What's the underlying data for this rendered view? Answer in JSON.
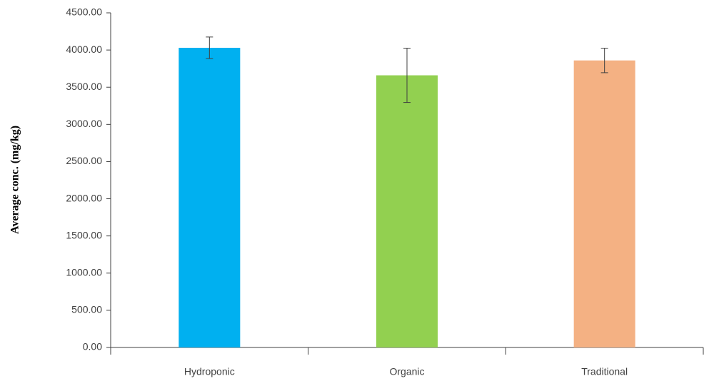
{
  "chart_data": {
    "type": "bar",
    "y_label": "Average conc. (mg/kg)",
    "categories": [
      "Hydroponic",
      "Organic",
      "Traditional"
    ],
    "values": [
      4030,
      3660,
      3860
    ],
    "errors": [
      145,
      365,
      165
    ],
    "colors": [
      "#00b0f0",
      "#92d050",
      "#f4b183"
    ],
    "ylim": [
      0,
      4500
    ],
    "yticks": [
      {
        "value": 0,
        "label": "0.00"
      },
      {
        "value": 500,
        "label": "500.00"
      },
      {
        "value": 1000,
        "label": "1000.00"
      },
      {
        "value": 1500,
        "label": "1500.00"
      },
      {
        "value": 2000,
        "label": "2000.00"
      },
      {
        "value": 2500,
        "label": "2500.00"
      },
      {
        "value": 3000,
        "label": "3000.00"
      },
      {
        "value": 3500,
        "label": "3500.00"
      },
      {
        "value": 4000,
        "label": "4000.00"
      },
      {
        "value": 4500,
        "label": "4500.00"
      }
    ],
    "grid": false
  }
}
